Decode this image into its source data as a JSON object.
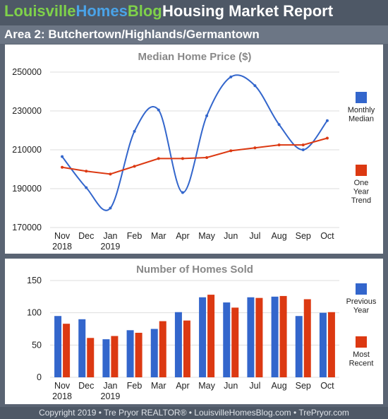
{
  "header": {
    "brand_part1": "Louisville",
    "brand_part2": "Homes",
    "brand_part3": "Blog",
    "report_title": "Housing Market Report"
  },
  "area_title": "Area 2: Butchertown/Highlands/Germantown",
  "footer": {
    "copyright": "Copyright 2019 • Tre Pryor REALTOR® • LouisvilleHomesBlog.com • TrePryor.com"
  },
  "colors": {
    "blue": "#3366cc",
    "red": "#dc3912",
    "grid": "#dddddd",
    "title": "#888888"
  },
  "chart_data": [
    {
      "type": "line",
      "title": "Median Home Price ($)",
      "categories": [
        "Nov",
        "Dec",
        "Jan",
        "Feb",
        "Mar",
        "Apr",
        "May",
        "Jun",
        "Jul",
        "Aug",
        "Sep",
        "Oct"
      ],
      "category_years": [
        "2018",
        "",
        "2019",
        "",
        "",
        "",
        "",
        "",
        "",
        "",
        "",
        ""
      ],
      "yticks": [
        "250000",
        "230000",
        "210000",
        "190000",
        "170000"
      ],
      "ylim": [
        170000,
        250000
      ],
      "grid": true,
      "legend_position": "right",
      "series": [
        {
          "name_lines": [
            "Monthly",
            "Median"
          ],
          "color": "#3366cc",
          "smooth": true,
          "values": [
            206500,
            190500,
            180000,
            219500,
            230500,
            188000,
            227500,
            247500,
            243000,
            223000,
            210000,
            225000
          ]
        },
        {
          "name_lines": [
            "One",
            "Year",
            "Trend"
          ],
          "color": "#dc3912",
          "smooth": false,
          "values": [
            201000,
            199000,
            197500,
            201500,
            205500,
            205500,
            206000,
            209500,
            211000,
            212500,
            212500,
            216000
          ]
        }
      ]
    },
    {
      "type": "bar",
      "title": "Number of Homes Sold",
      "categories": [
        "Nov",
        "Dec",
        "Jan",
        "Feb",
        "Mar",
        "Apr",
        "May",
        "Jun",
        "Jul",
        "Aug",
        "Sep",
        "Oct"
      ],
      "category_years": [
        "2018",
        "",
        "2019",
        "",
        "",
        "",
        "",
        "",
        "",
        "",
        "",
        ""
      ],
      "yticks": [
        "150",
        "100",
        "50",
        "0"
      ],
      "ylim": [
        0,
        150
      ],
      "grid": true,
      "legend_position": "right",
      "series": [
        {
          "name_lines": [
            "Previous",
            "Year"
          ],
          "color": "#3366cc",
          "values": [
            95,
            90,
            59,
            73,
            75,
            101,
            124,
            116,
            124,
            125,
            95,
            100
          ]
        },
        {
          "name_lines": [
            "Most",
            "Recent"
          ],
          "color": "#dc3912",
          "values": [
            83,
            61,
            64,
            69,
            87,
            88,
            128,
            108,
            123,
            126,
            121,
            101
          ]
        }
      ]
    }
  ]
}
